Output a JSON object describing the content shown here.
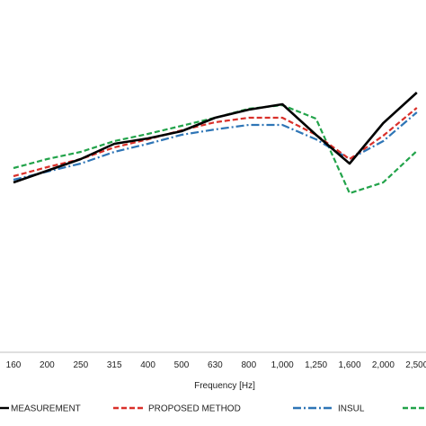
{
  "chart_data": {
    "type": "line",
    "title": "",
    "xlabel": "Frequency [Hz]",
    "ylabel": "",
    "categories": [
      "160",
      "200",
      "250",
      "315",
      "400",
      "500",
      "630",
      "800",
      "1,000",
      "1,250",
      "1,600",
      "2,000",
      "2,500"
    ],
    "grid": false,
    "legend_position": "bottom",
    "series": [
      {
        "name": "MEASUREMENT",
        "color": "#000000",
        "dash": "solid",
        "values": [
          203,
          190,
          177,
          160,
          154,
          146,
          131,
          122,
          116,
          150,
          182,
          137,
          103
        ]
      },
      {
        "name": "PROPOSED METHOD",
        "color": "#d9302a",
        "dash": "dash",
        "values": [
          196,
          186,
          177,
          164,
          155,
          145,
          136,
          131,
          131,
          150,
          177,
          151,
          120
        ]
      },
      {
        "name": "INSUL",
        "color": "#2e75b6",
        "dash": "dashdot",
        "values": [
          200,
          191,
          182,
          169,
          160,
          150,
          144,
          139,
          139,
          155,
          177,
          157,
          125
        ]
      },
      {
        "name": "",
        "color": "#22a34a",
        "dash": "dash",
        "values": [
          187,
          177,
          169,
          157,
          149,
          140,
          131,
          121,
          117,
          132,
          215,
          203,
          168
        ]
      }
    ]
  }
}
